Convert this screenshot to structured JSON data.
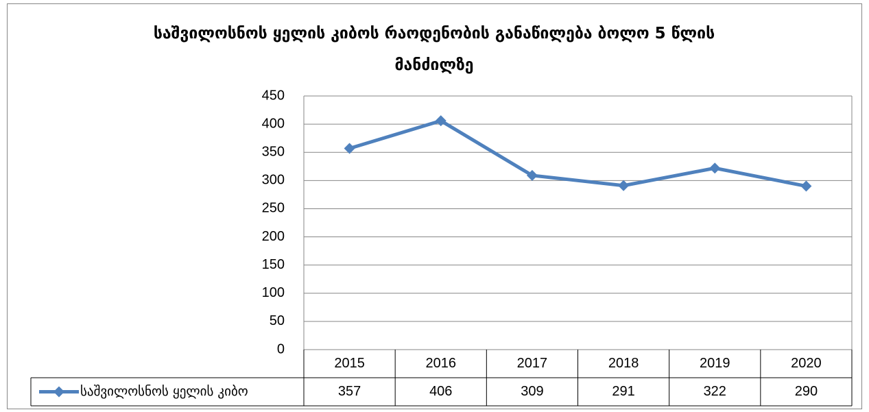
{
  "chart_data": {
    "type": "line",
    "title": "საშვილოსნოს ყელის კიბოს რაოდენობის განაწილება ბოლო 5 წლის მანძილზე",
    "categories": [
      "2015",
      "2016",
      "2017",
      "2018",
      "2019",
      "2020"
    ],
    "series": [
      {
        "name": "საშვილოსნოს ყელის კიბო",
        "color": "#4f81bd",
        "values": [
          357,
          406,
          309,
          291,
          322,
          290
        ]
      }
    ],
    "ylim": [
      0,
      450
    ],
    "yticks": [
      0,
      50,
      100,
      150,
      200,
      250,
      300,
      350,
      400,
      450
    ],
    "grid": true,
    "data_table": true
  }
}
